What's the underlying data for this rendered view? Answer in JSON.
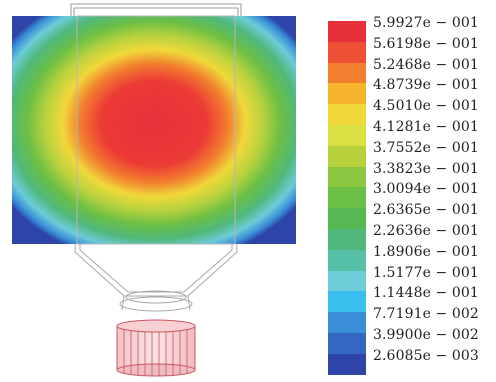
{
  "legend": {
    "entries": [
      {
        "label": "5.9927e − 001",
        "color": "#e8303a"
      },
      {
        "label": "5.6198e − 001",
        "color": "#ee5036"
      },
      {
        "label": "5.2468e − 001",
        "color": "#f27f2e"
      },
      {
        "label": "4.8739e − 001",
        "color": "#f5b42c"
      },
      {
        "label": "4.5010e − 001",
        "color": "#f0d83a"
      },
      {
        "label": "4.1281e − 001",
        "color": "#dbe042"
      },
      {
        "label": "3.7552e − 001",
        "color": "#b8d23e"
      },
      {
        "label": "3.3823e − 001",
        "color": "#8dc63f"
      },
      {
        "label": "3.0094e − 001",
        "color": "#6cbf45"
      },
      {
        "label": "2.6365e − 001",
        "color": "#55b853"
      },
      {
        "label": "2.2636e − 001",
        "color": "#50b87a"
      },
      {
        "label": "1.8906e − 001",
        "color": "#55bfa8"
      },
      {
        "label": "1.5177e − 001",
        "color": "#6cccd8"
      },
      {
        "label": "1.1448e − 001",
        "color": "#3bbfee"
      },
      {
        "label": "7.7191e − 002",
        "color": "#3a8fd8"
      },
      {
        "label": "3.9900e − 002",
        "color": "#3566c2"
      },
      {
        "label": "2.6085e − 003",
        "color": "#2d45a8"
      }
    ]
  }
}
